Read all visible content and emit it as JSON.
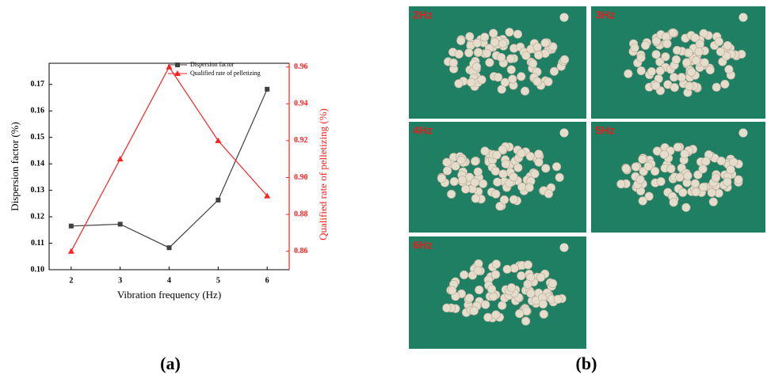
{
  "chart_data": {
    "type": "line",
    "x_label": "Vibration frequency (Hz)",
    "y_label": "Dispersion factor (%)",
    "y2_label": "Qualified rate of pelletizing (%)",
    "x": [
      2,
      3,
      4,
      5,
      6
    ],
    "xlim": [
      1.55,
      6.45
    ],
    "xticks": [
      2,
      3,
      4,
      5,
      6
    ],
    "ylim": [
      0.1,
      0.178
    ],
    "yticks": [
      {
        "value": 0.1,
        "label": "0.10"
      },
      0.11,
      0.12,
      0.13,
      0.14,
      0.15,
      0.16,
      0.17
    ],
    "y2lim": [
      0.85,
      0.962
    ],
    "y2ticks": [
      0.86,
      0.88,
      {
        "value": 0.9,
        "label": "0.90"
      },
      0.92,
      0.94,
      0.96
    ],
    "legend": "upper right",
    "series": [
      {
        "name": "Dispersion factor",
        "color": "#404040",
        "marker": "square",
        "values": [
          0.1165,
          0.1172,
          0.1083,
          0.1263,
          0.1682
        ]
      },
      {
        "name": "Qualified rate of pelletizing",
        "color": "#ff2020",
        "marker": "triangle",
        "axis": "y2",
        "values": [
          0.86,
          0.91,
          0.96,
          0.92,
          0.89
        ]
      }
    ]
  },
  "panel_labels": [
    "(a)",
    "(b)"
  ],
  "photos": [
    "2Hz",
    "3Hz",
    "4Hz",
    "5Hz",
    "6Hz"
  ]
}
